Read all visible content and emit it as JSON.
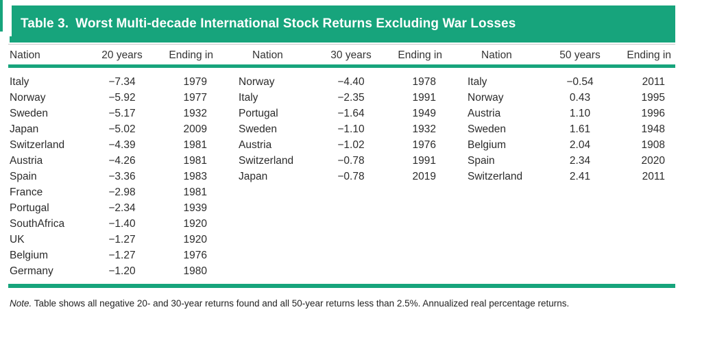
{
  "page": {
    "accent_color": "#17a47c"
  },
  "table": {
    "title_label": "Table 3.",
    "title_text": "Worst Multi-decade International Stock Returns Excluding War Losses",
    "groups": [
      {
        "headers": {
          "nation": "Nation",
          "period": "20 years",
          "ending": "Ending in"
        },
        "rows": [
          [
            "Italy",
            "−7.34",
            "1979"
          ],
          [
            "Norway",
            "−5.92",
            "1977"
          ],
          [
            "Sweden",
            "−5.17",
            "1932"
          ],
          [
            "Japan",
            "−5.02",
            "2009"
          ],
          [
            "Switzerland",
            "−4.39",
            "1981"
          ],
          [
            "Austria",
            "−4.26",
            "1981"
          ],
          [
            "Spain",
            "−3.36",
            "1983"
          ],
          [
            "France",
            "−2.98",
            "1981"
          ],
          [
            "Portugal",
            "−2.34",
            "1939"
          ],
          [
            "SouthAfrica",
            "−1.40",
            "1920"
          ],
          [
            "UK",
            "−1.27",
            "1920"
          ],
          [
            "Belgium",
            "−1.27",
            "1976"
          ],
          [
            "Germany",
            "−1.20",
            "1980"
          ]
        ]
      },
      {
        "headers": {
          "nation": "Nation",
          "period": "30 years",
          "ending": "Ending in"
        },
        "rows": [
          [
            "Norway",
            "−4.40",
            "1978"
          ],
          [
            "Italy",
            "−2.35",
            "1991"
          ],
          [
            "Portugal",
            "−1.64",
            "1949"
          ],
          [
            "Sweden",
            "−1.10",
            "1932"
          ],
          [
            "Austria",
            "−1.02",
            "1976"
          ],
          [
            "Switzerland",
            "−0.78",
            "1991"
          ],
          [
            "Japan",
            "−0.78",
            "2019"
          ]
        ]
      },
      {
        "headers": {
          "nation": "Nation",
          "period": "50 years",
          "ending": "Ending in"
        },
        "rows": [
          [
            "Italy",
            "−0.54",
            "2011"
          ],
          [
            "Norway",
            "0.43",
            "1995"
          ],
          [
            "Austria",
            "1.10",
            "1996"
          ],
          [
            "Sweden",
            "1.61",
            "1948"
          ],
          [
            "Belgium",
            "2.04",
            "1908"
          ],
          [
            "Spain",
            "2.34",
            "2020"
          ],
          [
            "Switzerland",
            "2.41",
            "2011"
          ]
        ]
      }
    ],
    "note_label": "Note.",
    "note_text": "Table shows all negative 20- and 30-year returns found and all 50-year returns less than 2.5%. Annualized real percentage returns."
  }
}
